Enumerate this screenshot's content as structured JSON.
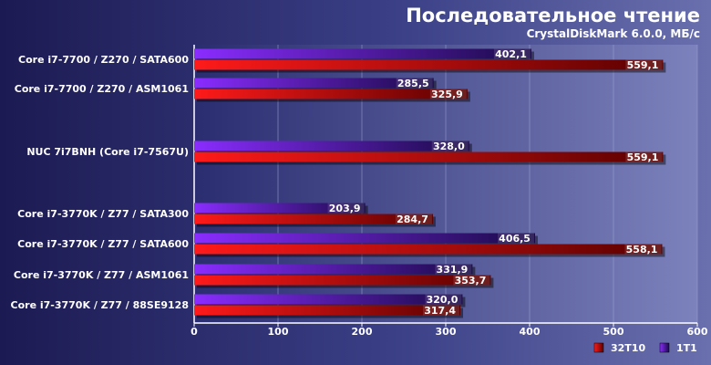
{
  "chart_data": {
    "type": "bar",
    "orientation": "horizontal",
    "title": "Последовательное чтение",
    "subtitle": "CrystalDiskMark 6.0.0, МБ/с",
    "categories": [
      "Core i7-7700 / Z270 / SATA600",
      "Core i7-7700 / Z270 / ASM1061",
      "NUC 7i7BNH (Core i7-7567U)",
      "Core i7-3770K / Z77 / SATA300",
      "Core i7-3770K / Z77 / SATA600",
      "Core i7-3770K / Z77 / ASM1061",
      "Core i7-3770K / Z77 / 88SE9128"
    ],
    "series": [
      {
        "name": "1T1",
        "color": "#7a1cf2",
        "values": [
          402.1,
          285.5,
          328.0,
          203.9,
          406.5,
          331.9,
          320.0
        ],
        "labels": [
          "402,1",
          "285,5",
          "328,0",
          "203,9",
          "406,5",
          "331,9",
          "320,0"
        ]
      },
      {
        "name": "32T10",
        "color": "#f01010",
        "values": [
          559.1,
          325.9,
          559.1,
          284.7,
          558.1,
          353.7,
          317.4
        ],
        "labels": [
          "559,1",
          "325,9",
          "559,1",
          "284,7",
          "558,1",
          "353,7",
          "317,4"
        ]
      }
    ],
    "xlim": [
      0,
      600
    ],
    "xticks": [
      "0",
      "100",
      "200",
      "300",
      "400",
      "500",
      "600"
    ],
    "xlabel": "",
    "ylabel": "",
    "grid": true,
    "legend_position": "bottom-right",
    "legend_order": [
      "32T10",
      "1T1"
    ]
  }
}
